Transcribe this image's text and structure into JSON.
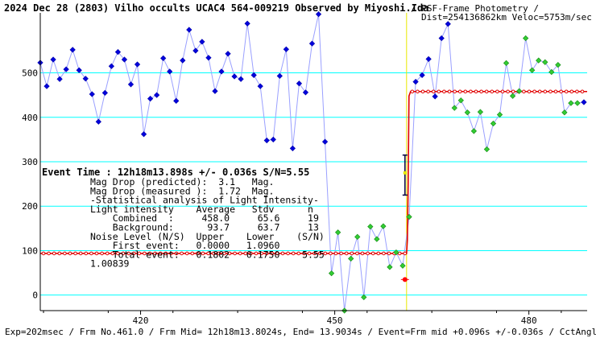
{
  "chart_data": {
    "type": "line",
    "title_bold": "2024 Dec 28 (2803) Vilho occults UCAC4 564-009219 Observed by Miyoshi.Ida",
    "title_extra": "/ PSF-Frame Photometry /",
    "title_line2": "Dist=254136862km Veloc=5753m/sec",
    "footer": "Exp=202msec / Frm No.461.0 / Frm Mid= 12h18m13.8024s, End= 13.9034s / Event=Frm mid +0.096s +/-0.036s / CctAngle=0.0deg",
    "xlim": [
      404.5,
      489
    ],
    "ylim": [
      -35,
      635
    ],
    "x_ticks": [
      420,
      450,
      480
    ],
    "y_ticks": [
      0,
      100,
      200,
      300,
      400,
      500
    ],
    "grid_y": true,
    "event_x": 461.1,
    "event_error": 0.18,
    "background_level": 93.7,
    "combined_level": 458.0,
    "series": [
      {
        "style": "points-blue",
        "x": [
          404.5,
          405.5,
          406.5,
          407.5,
          408.5,
          409.5,
          410.5,
          411.5,
          412.5,
          413.5,
          414.5,
          415.5,
          416.5,
          417.5,
          418.5,
          419.5,
          420.5,
          421.5,
          422.5,
          423.5,
          424.5,
          425.5,
          426.5,
          427.5,
          428.5,
          429.5,
          430.5,
          431.5,
          432.5,
          433.5,
          434.5,
          435.5,
          436.5,
          437.5,
          438.5,
          439.5,
          440.5,
          441.5,
          442.5,
          443.5,
          444.5,
          445.5
        ],
        "y": [
          523,
          470,
          530,
          486,
          508,
          552,
          506,
          487,
          452,
          390,
          455,
          515,
          547,
          530,
          474,
          519,
          362,
          442,
          450,
          533,
          503,
          437,
          528,
          597,
          550,
          570,
          534,
          459,
          503,
          543,
          492,
          486,
          611,
          495,
          470,
          348,
          350,
          493,
          553,
          330,
          476,
          456
        ]
      },
      {
        "style": "points-blue",
        "x": [
          446.5,
          447.5
        ],
        "y": [
          566,
          632
        ]
      },
      {
        "style": "points-blue",
        "x": [
          448.5
        ],
        "y": [
          345
        ]
      },
      {
        "style": "points-green",
        "x": [
          449.5,
          450.5,
          451.5,
          452.5,
          453.5,
          454.5,
          455.5,
          456.5,
          457.5,
          458.5,
          459.5,
          460.5
        ],
        "y": [
          49,
          141,
          -35,
          82,
          131,
          -5,
          154,
          126,
          155,
          63,
          96,
          66
        ]
      },
      {
        "style": "points-green",
        "x": [
          461.5
        ],
        "y": [
          176
        ]
      },
      {
        "style": "points-blue",
        "x": [
          462.5,
          463.5,
          464.5,
          465.5,
          466.5,
          467.5
        ],
        "y": [
          480,
          495,
          531,
          447,
          578,
          610
        ]
      },
      {
        "style": "points-green",
        "x": [
          468.5,
          469.5,
          470.5,
          471.5,
          472.5,
          473.5,
          474.5,
          475.5,
          476.5,
          477.5,
          478.5,
          479.5,
          480.5,
          481.5,
          482.5,
          483.5,
          484.5,
          485.5,
          486.5,
          487.5
        ],
        "y": [
          421,
          438,
          411,
          369,
          412,
          328,
          386,
          406,
          522,
          448,
          459,
          578,
          506,
          528,
          524,
          502,
          518,
          411,
          432,
          432
        ]
      },
      {
        "style": "points-blue",
        "x": [
          488.5
        ],
        "y": [
          434
        ]
      }
    ],
    "stats": {
      "event_time": "Event Time : 12h18m13.898s  +/- 0.036s  S/N=5.55",
      "lines": [
        "Mag Drop (predicted):  3.1   Mag.",
        "Mag Drop (measured ):  1.72  Mag.",
        "-Statistical analysis of Light Intensity-",
        "Light intensity    Average   Stdv      n",
        "    Combined  :     458.0     65.6     19",
        "    Background:      93.7     63.7     13",
        "Noise Level (N/S)  Upper    Lower    (S/N)",
        "    First event:   0.0000   1.0960",
        "    Total event:   0.1802   0.1750    5.55",
        "1.00839"
      ]
    }
  }
}
